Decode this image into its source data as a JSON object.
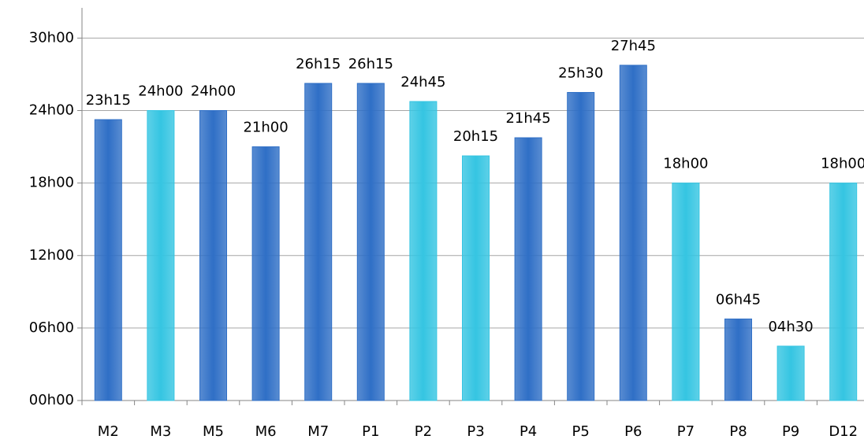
{
  "chart_data": {
    "type": "bar",
    "categories": [
      "M2",
      "M3",
      "M5",
      "M6",
      "M7",
      "P1",
      "P2",
      "P3",
      "P4",
      "P5",
      "P6",
      "P7",
      "P8",
      "P9",
      "D12"
    ],
    "values": [
      23.25,
      24,
      24,
      21,
      26.25,
      26.25,
      24.75,
      20.25,
      21.75,
      25.5,
      27.75,
      18,
      6.75,
      4.5,
      18
    ],
    "value_labels": [
      "23h15",
      "24h00",
      "24h00",
      "21h00",
      "26h15",
      "26h15",
      "24h45",
      "20h15",
      "21h45",
      "25h30",
      "27h45",
      "18h00",
      "06h45",
      "04h30",
      "18h00"
    ],
    "colors": [
      "#2f6fc6",
      "#35c5e2",
      "#2f6fc6",
      "#2f6fc6",
      "#2f6fc6",
      "#2f6fc6",
      "#35c5e2",
      "#35c5e2",
      "#2f6fc6",
      "#2f6fc6",
      "#2f6fc6",
      "#35c5e2",
      "#2f6fc6",
      "#35c5e2",
      "#35c5e2"
    ],
    "ylim": [
      0,
      32.5
    ],
    "yticks": [
      {
        "value": 0,
        "label": "00h00"
      },
      {
        "value": 6,
        "label": "06h00"
      },
      {
        "value": 12,
        "label": "12h00"
      },
      {
        "value": 18,
        "label": "18h00"
      },
      {
        "value": 24,
        "label": "24h00"
      },
      {
        "value": 30,
        "label": "30h00"
      }
    ],
    "grid": true
  }
}
